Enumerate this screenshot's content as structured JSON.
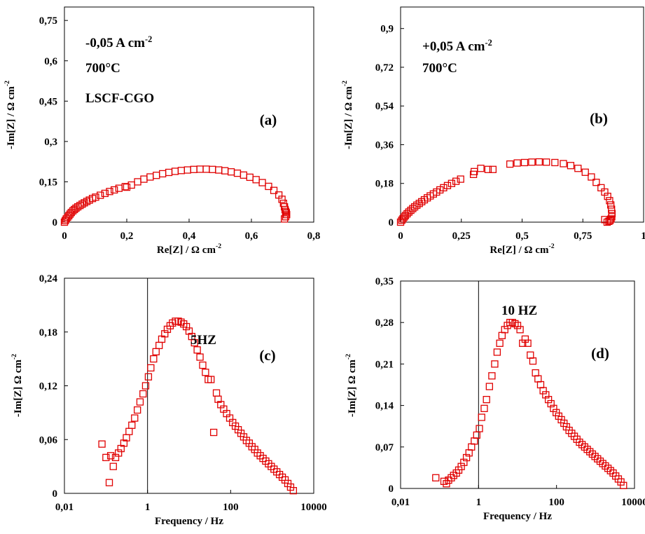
{
  "chart_data": [
    {
      "id": "a",
      "type": "scatter",
      "panel_label": "(a)",
      "annotations": [
        "-0,05 A cm-2",
        "700°C",
        "LSCF-CGO"
      ],
      "xlabel": "Re[Z] / Ω cm-2",
      "ylabel": "-Im[Z] / Ω cm-2",
      "xlim": [
        0,
        0.8
      ],
      "ylim": [
        0,
        0.8
      ],
      "xticks": [
        0,
        0.2,
        0.4,
        0.6,
        0.8
      ],
      "xtick_labels": [
        "0",
        "0,2",
        "0,4",
        "0,6",
        "0,8"
      ],
      "yticks": [
        0,
        0.15,
        0.3,
        0.45,
        0.6,
        0.75
      ],
      "ytick_labels": [
        "0",
        "0,15",
        "0,3",
        "0,45",
        "0,6",
        "0,75"
      ],
      "marker_color": "#e00000",
      "x": [
        0.0,
        0.003,
        0.006,
        0.01,
        0.014,
        0.018,
        0.022,
        0.027,
        0.032,
        0.037,
        0.043,
        0.05,
        0.057,
        0.064,
        0.072,
        0.08,
        0.09,
        0.1,
        0.115,
        0.13,
        0.145,
        0.16,
        0.175,
        0.195,
        0.215,
        0.2,
        0.235,
        0.255,
        0.275,
        0.295,
        0.315,
        0.335,
        0.355,
        0.375,
        0.395,
        0.415,
        0.435,
        0.455,
        0.475,
        0.495,
        0.515,
        0.535,
        0.555,
        0.575,
        0.595,
        0.615,
        0.635,
        0.655,
        0.672,
        0.688,
        0.698,
        0.703,
        0.706,
        0.708,
        0.71,
        0.712,
        0.713,
        0.71,
        0.706
      ],
      "y": [
        0.0,
        0.006,
        0.012,
        0.018,
        0.024,
        0.03,
        0.036,
        0.042,
        0.047,
        0.052,
        0.057,
        0.062,
        0.067,
        0.072,
        0.077,
        0.082,
        0.088,
        0.093,
        0.1,
        0.107,
        0.114,
        0.12,
        0.126,
        0.132,
        0.138,
        0.13,
        0.15,
        0.16,
        0.168,
        0.174,
        0.18,
        0.185,
        0.189,
        0.192,
        0.194,
        0.196,
        0.197,
        0.197,
        0.196,
        0.194,
        0.191,
        0.187,
        0.182,
        0.175,
        0.167,
        0.158,
        0.147,
        0.133,
        0.118,
        0.101,
        0.085,
        0.07,
        0.057,
        0.047,
        0.04,
        0.035,
        0.028,
        0.02,
        0.012
      ]
    },
    {
      "id": "b",
      "type": "scatter",
      "panel_label": "(b)",
      "annotations": [
        "+0,05 A cm-2",
        "700°C"
      ],
      "xlabel": "Re[Z] / Ω cm-2",
      "ylabel": "-Im[Z] / Ω cm-2",
      "xlim": [
        0,
        1
      ],
      "ylim": [
        0,
        1
      ],
      "xticks": [
        0,
        0.25,
        0.5,
        0.75,
        1
      ],
      "xtick_labels": [
        "0",
        "0,25",
        "0,5",
        "0,75",
        "1"
      ],
      "yticks": [
        0,
        0.18,
        0.36,
        0.54,
        0.72,
        0.9
      ],
      "ytick_labels": [
        "0",
        "0,18",
        "0,36",
        "0,54",
        "0,72",
        "0,9"
      ],
      "marker_color": "#e00000",
      "x": [
        0.0,
        0.005,
        0.01,
        0.015,
        0.02,
        0.027,
        0.034,
        0.042,
        0.05,
        0.058,
        0.067,
        0.077,
        0.087,
        0.098,
        0.11,
        0.122,
        0.135,
        0.148,
        0.162,
        0.177,
        0.193,
        0.21,
        0.228,
        0.247,
        0.3,
        0.303,
        0.33,
        0.36,
        0.38,
        0.45,
        0.48,
        0.51,
        0.54,
        0.57,
        0.6,
        0.635,
        0.67,
        0.7,
        0.73,
        0.76,
        0.785,
        0.805,
        0.825,
        0.84,
        0.852,
        0.86,
        0.865,
        0.868,
        0.87,
        0.869,
        0.866,
        0.862,
        0.857,
        0.85,
        0.84
      ],
      "y": [
        0.0,
        0.009,
        0.016,
        0.024,
        0.031,
        0.039,
        0.047,
        0.055,
        0.063,
        0.071,
        0.079,
        0.087,
        0.095,
        0.104,
        0.113,
        0.122,
        0.131,
        0.14,
        0.15,
        0.16,
        0.17,
        0.18,
        0.19,
        0.2,
        0.222,
        0.235,
        0.25,
        0.245,
        0.245,
        0.27,
        0.275,
        0.277,
        0.279,
        0.28,
        0.279,
        0.277,
        0.272,
        0.263,
        0.25,
        0.232,
        0.21,
        0.185,
        0.16,
        0.14,
        0.12,
        0.1,
        0.08,
        0.06,
        0.04,
        0.025,
        0.015,
        0.008,
        0.004,
        0.0,
        0.012
      ]
    },
    {
      "id": "c",
      "type": "scatter",
      "panel_label": "(c)",
      "annotations": [
        "5HZ"
      ],
      "xlabel": "Frequency / Hz",
      "ylabel": "-Im[Z] Ω cm-2",
      "xscale": "log",
      "xlim": [
        0.01,
        10000
      ],
      "ylim": [
        0,
        0.24
      ],
      "xticks": [
        0.01,
        1,
        100,
        10000
      ],
      "xtick_labels": [
        "0,01",
        "1",
        "100",
        "10000"
      ],
      "yticks": [
        0,
        0.06,
        0.12,
        0.18,
        0.24
      ],
      "ytick_labels": [
        "0",
        "0,06",
        "0,12",
        "0,18",
        "0,24"
      ],
      "marker_color": "#e00000",
      "x": [
        0.08,
        0.1,
        0.12,
        0.13,
        0.15,
        0.17,
        0.2,
        0.23,
        0.27,
        0.31,
        0.36,
        0.42,
        0.49,
        0.57,
        0.66,
        0.78,
        0.9,
        1.05,
        1.2,
        1.4,
        1.6,
        1.9,
        2.2,
        2.6,
        3.0,
        3.5,
        4.0,
        4.7,
        5.5,
        6.4,
        7.4,
        8.6,
        10,
        11.6,
        13.5,
        15.7,
        18.3,
        21.3,
        24.8,
        28.9,
        33.6,
        39.1,
        45.5,
        50,
        58,
        68,
        80,
        95,
        112,
        130,
        152,
        177,
        206,
        240,
        280,
        326,
        380,
        443,
        516,
        601,
        700,
        816,
        950,
        1106,
        1290,
        1500,
        1750,
        2040,
        2380,
        2770,
        3230
      ],
      "y": [
        0.055,
        0.04,
        0.012,
        0.042,
        0.03,
        0.04,
        0.045,
        0.05,
        0.056,
        0.062,
        0.069,
        0.076,
        0.084,
        0.093,
        0.102,
        0.111,
        0.12,
        0.13,
        0.14,
        0.15,
        0.158,
        0.165,
        0.172,
        0.178,
        0.183,
        0.187,
        0.19,
        0.192,
        0.192,
        0.191,
        0.189,
        0.186,
        0.181,
        0.175,
        0.168,
        0.16,
        0.152,
        0.143,
        0.135,
        0.127,
        0.127,
        0.068,
        0.112,
        0.105,
        0.099,
        0.094,
        0.089,
        0.084,
        0.079,
        0.075,
        0.071,
        0.067,
        0.063,
        0.059,
        0.056,
        0.052,
        0.049,
        0.045,
        0.042,
        0.039,
        0.036,
        0.033,
        0.03,
        0.027,
        0.024,
        0.021,
        0.018,
        0.015,
        0.011,
        0.007,
        0.003
      ]
    },
    {
      "id": "d",
      "type": "scatter",
      "panel_label": "(d)",
      "annotations": [
        "10 HZ"
      ],
      "xlabel": "Frequency / Hz",
      "ylabel": "-Im[Z] Ω cm-2",
      "xscale": "log",
      "xlim": [
        0.01,
        10000
      ],
      "ylim": [
        0,
        0.35
      ],
      "xticks": [
        0.01,
        1,
        100,
        10000
      ],
      "xtick_labels": [
        "0,01",
        "1",
        "100",
        "10000"
      ],
      "yticks": [
        0,
        0.07,
        0.14,
        0.21,
        0.28,
        0.35
      ],
      "ytick_labels": [
        "0",
        "0,07",
        "0,14",
        "0,21",
        "0,28",
        "0,35"
      ],
      "marker_color": "#e00000",
      "x": [
        0.08,
        0.13,
        0.15,
        0.17,
        0.2,
        0.23,
        0.27,
        0.31,
        0.36,
        0.42,
        0.49,
        0.57,
        0.66,
        0.78,
        0.9,
        1.05,
        1.2,
        1.4,
        1.6,
        1.9,
        2.2,
        2.6,
        3.0,
        3.5,
        4.0,
        4.7,
        5.5,
        6.4,
        7.4,
        8.6,
        10,
        11.6,
        13.5,
        15.7,
        18.3,
        21.3,
        24.8,
        28.9,
        33.6,
        39.1,
        45.5,
        53,
        62,
        72,
        84,
        98,
        114,
        133,
        155,
        180,
        210,
        245,
        286,
        333,
        388,
        452,
        527,
        614,
        715,
        833,
        970,
        1130,
        1317,
        1535,
        1790,
        2085,
        2430,
        2830,
        3300,
        3850,
        4480,
        5220
      ],
      "y": [
        0.018,
        0.012,
        0.008,
        0.014,
        0.018,
        0.022,
        0.026,
        0.031,
        0.037,
        0.044,
        0.052,
        0.06,
        0.07,
        0.08,
        0.09,
        0.101,
        0.12,
        0.135,
        0.15,
        0.172,
        0.19,
        0.21,
        0.23,
        0.245,
        0.258,
        0.268,
        0.275,
        0.28,
        0.28,
        0.278,
        0.275,
        0.268,
        0.245,
        0.252,
        0.245,
        0.225,
        0.215,
        0.195,
        0.185,
        0.175,
        0.165,
        0.158,
        0.15,
        0.143,
        0.135,
        0.128,
        0.122,
        0.116,
        0.11,
        0.104,
        0.098,
        0.093,
        0.088,
        0.083,
        0.078,
        0.074,
        0.07,
        0.066,
        0.062,
        0.058,
        0.054,
        0.05,
        0.046,
        0.042,
        0.038,
        0.034,
        0.03,
        0.026,
        0.021,
        0.016,
        0.011,
        0.005
      ]
    }
  ]
}
